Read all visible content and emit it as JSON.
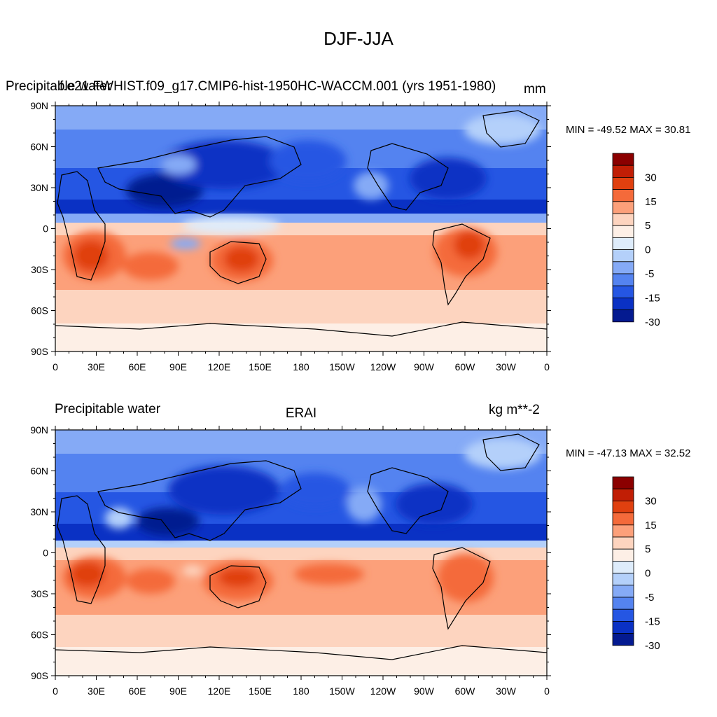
{
  "figure_title": "DJF-JJA",
  "panels": [
    {
      "left_label": "Precipitable water",
      "center_label": "f.e21.FWHIST.f09_g17.CMIP6-hist-1950HC-WACCM.001 (yrs 1951-1980)",
      "right_label": "mm",
      "stats": "MIN = -49.52 MAX =  30.81"
    },
    {
      "left_label": "Precipitable water",
      "center_label": "ERAI",
      "right_label": "kg m**-2",
      "stats": "MIN = -47.13 MAX =  32.52"
    }
  ],
  "axes": {
    "lat_ticks": [
      "90N",
      "60N",
      "30N",
      "0",
      "30S",
      "60S",
      "90S"
    ],
    "lon_ticks": [
      "0",
      "30E",
      "60E",
      "90E",
      "120E",
      "150E",
      "180",
      "150W",
      "120W",
      "90W",
      "60W",
      "30W",
      "0"
    ]
  },
  "colorbar": {
    "labels": [
      "30",
      "15",
      "5",
      "0",
      "-5",
      "-15",
      "-30"
    ],
    "colors": [
      "#8b0000",
      "#c11e05",
      "#e0400f",
      "#f46a3a",
      "#fca07a",
      "#fdd4bf",
      "#fdefe6",
      "#deecfb",
      "#b4d0fa",
      "#85aaf6",
      "#5483f0",
      "#2556e3",
      "#0a31c4",
      "#041a90"
    ]
  }
}
